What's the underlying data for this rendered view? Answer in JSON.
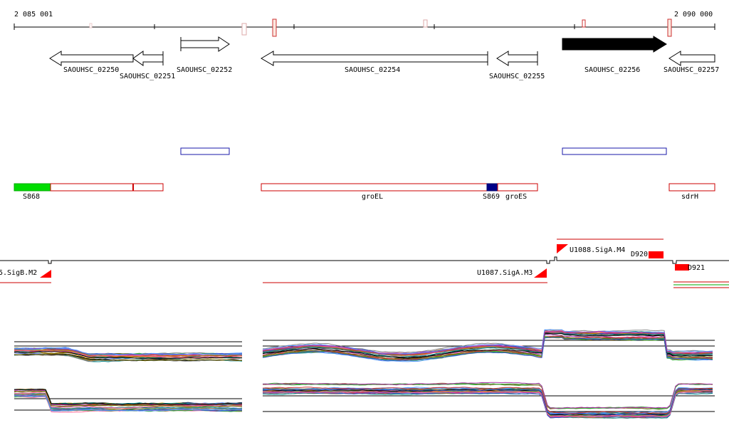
{
  "ruler": {
    "start_label": "2 085 001",
    "end_label": "2 090 000"
  },
  "genes": [
    {
      "label": "SAOUHSC_02250",
      "strand": "-",
      "filled": false
    },
    {
      "label": "SAOUHSC_02251",
      "strand": "-",
      "filled": false
    },
    {
      "label": "SAOUHSC_02252",
      "strand": "+",
      "filled": false
    },
    {
      "label": "SAOUHSC_02254",
      "strand": "-",
      "filled": false
    },
    {
      "label": "SAOUHSC_02255",
      "strand": "-",
      "filled": false
    },
    {
      "label": "SAOUHSC_02256",
      "strand": "+",
      "filled": true
    },
    {
      "label": "SAOUHSC_02257",
      "strand": "-",
      "filled": false
    }
  ],
  "features": [
    {
      "label": "S868",
      "color": "#00dd00"
    },
    {
      "label": "groEL",
      "color": "#cc0000"
    },
    {
      "label": "S869",
      "color": "#000088"
    },
    {
      "label": "groES",
      "color": "#cc0000"
    },
    {
      "label": "sdrH",
      "color": "#cc0000"
    }
  ],
  "promoters": [
    {
      "label": "5.SigB.M2"
    },
    {
      "label": "U1087.SigA.M3"
    },
    {
      "label": "U1088.SigA.M4"
    },
    {
      "label": "D920"
    },
    {
      "label": "D921"
    }
  ],
  "colors": {
    "gene_outline": "#000000",
    "ruler_tick_mark": "#cc3333",
    "protein_box": "#1a1aaa",
    "feature_outline": "#cc0000",
    "terminator": "#ff0000"
  }
}
